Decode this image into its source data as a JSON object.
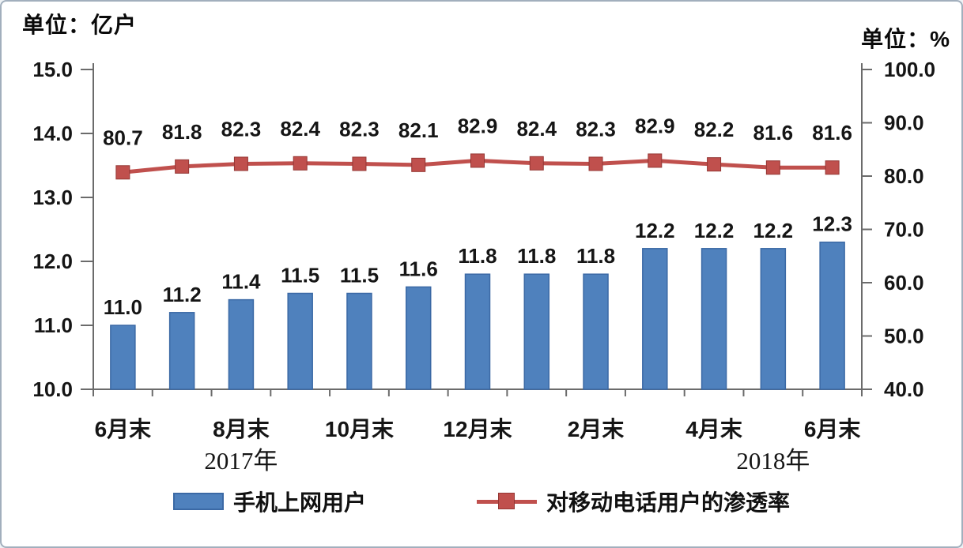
{
  "units": {
    "left": "单位：亿户",
    "right": "单位：%"
  },
  "legend": {
    "items": [
      {
        "label": "手机上网用户",
        "type": "bar"
      },
      {
        "label": "对移动电话用户的渗透率",
        "type": "line"
      }
    ]
  },
  "colors": {
    "bar_fill": "#4f81bd",
    "bar_border": "#3b69a5",
    "line": "#c0504d",
    "marker_border": "#953734",
    "axis": "#6b6b6b",
    "text": "#151515"
  },
  "chart_data": {
    "type": "bar+line",
    "n_categories": 13,
    "series": [
      {
        "name": "手机上网用户",
        "type": "bar",
        "axis": "left",
        "values": [
          11.0,
          11.2,
          11.4,
          11.5,
          11.5,
          11.6,
          11.8,
          11.8,
          11.8,
          12.2,
          12.2,
          12.2,
          12.3
        ]
      },
      {
        "name": "对移动电话用户的渗透率",
        "type": "line",
        "axis": "right",
        "values": [
          80.7,
          81.8,
          82.3,
          82.4,
          82.3,
          82.1,
          82.9,
          82.4,
          82.3,
          82.9,
          82.2,
          81.6,
          81.6
        ]
      }
    ],
    "left_axis": {
      "title": "单位：亿户",
      "min": 10.0,
      "max": 15.0,
      "tick_labels": [
        "15.0",
        "14.0",
        "13.0",
        "12.0",
        "11.0",
        "10.0"
      ]
    },
    "right_axis": {
      "title": "单位：%",
      "min": 40.0,
      "max": 100.0,
      "tick_labels": [
        "100.0",
        "90.0",
        "80.0",
        "70.0",
        "60.0",
        "50.0",
        "40.0"
      ]
    },
    "x_ticks": [
      {
        "slot": 0,
        "label": "6月末"
      },
      {
        "slot": 2,
        "label": "8月末"
      },
      {
        "slot": 4,
        "label": "10月末"
      },
      {
        "slot": 6,
        "label": "12月末"
      },
      {
        "slot": 8,
        "label": "2月末"
      },
      {
        "slot": 10,
        "label": "4月末"
      },
      {
        "slot": 12,
        "label": "6月末"
      }
    ],
    "year_labels": [
      {
        "slot": 2,
        "label": "2017年"
      },
      {
        "slot": 11,
        "label": "2018年"
      }
    ],
    "grid": false,
    "legend_position": "bottom",
    "data_labels": true
  }
}
